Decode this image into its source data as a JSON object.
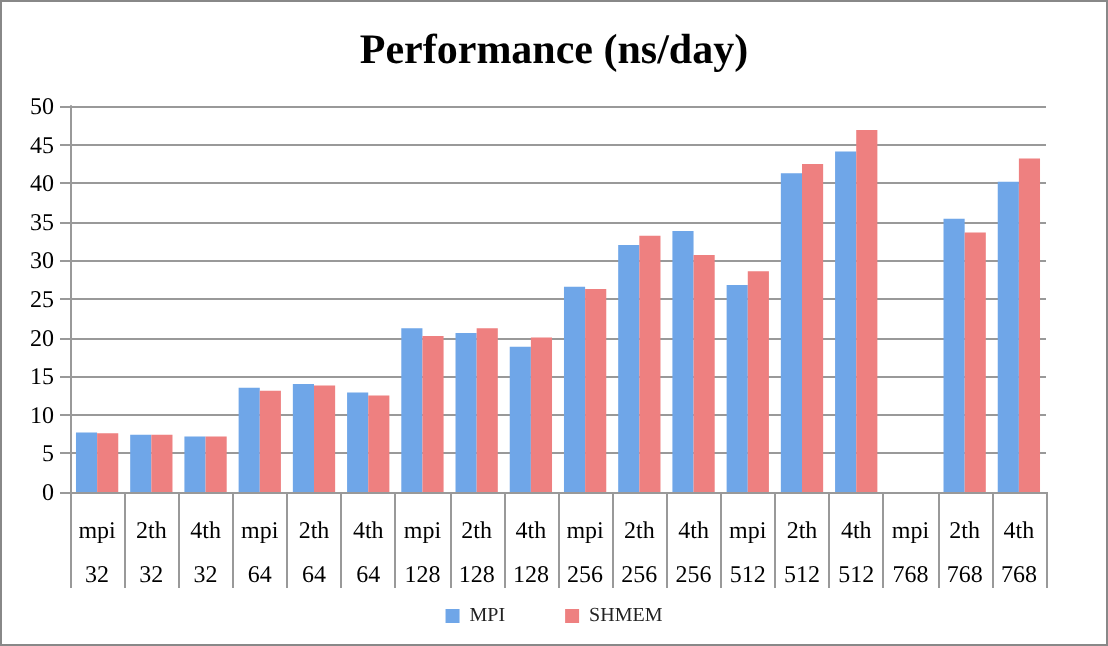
{
  "chart_data": {
    "type": "bar",
    "title": "Performance (ns/day)",
    "categories": [
      "mpi\n32",
      "2th\n32",
      "4th\n32",
      "mpi\n64",
      "2th\n64",
      "4th\n64",
      "mpi\n128",
      "2th\n128",
      "4th\n128",
      "mpi\n256",
      "2th\n256",
      "4th\n256",
      "mpi\n512",
      "2th\n512",
      "4th\n512",
      "mpi\n768",
      "2th\n768",
      "4th\n768"
    ],
    "series": [
      {
        "name": "MPI",
        "color": "#6fa6e8",
        "values": [
          7.7,
          7.4,
          7.2,
          13.5,
          14.0,
          12.9,
          21.2,
          20.6,
          18.8,
          26.6,
          32.0,
          33.8,
          26.8,
          41.3,
          44.1,
          null,
          35.4,
          40.2
        ]
      },
      {
        "name": "SHMEM",
        "color": "#ee8080",
        "values": [
          7.6,
          7.4,
          7.2,
          13.1,
          13.8,
          12.5,
          20.2,
          21.2,
          20.0,
          26.3,
          33.2,
          30.7,
          28.6,
          42.5,
          46.9,
          null,
          33.6,
          43.2
        ]
      }
    ],
    "ylim": [
      0,
      50
    ],
    "yticks": [
      0,
      5,
      10,
      15,
      20,
      25,
      30,
      35,
      40,
      45,
      50
    ],
    "grid": "y",
    "legend": "bottom"
  }
}
